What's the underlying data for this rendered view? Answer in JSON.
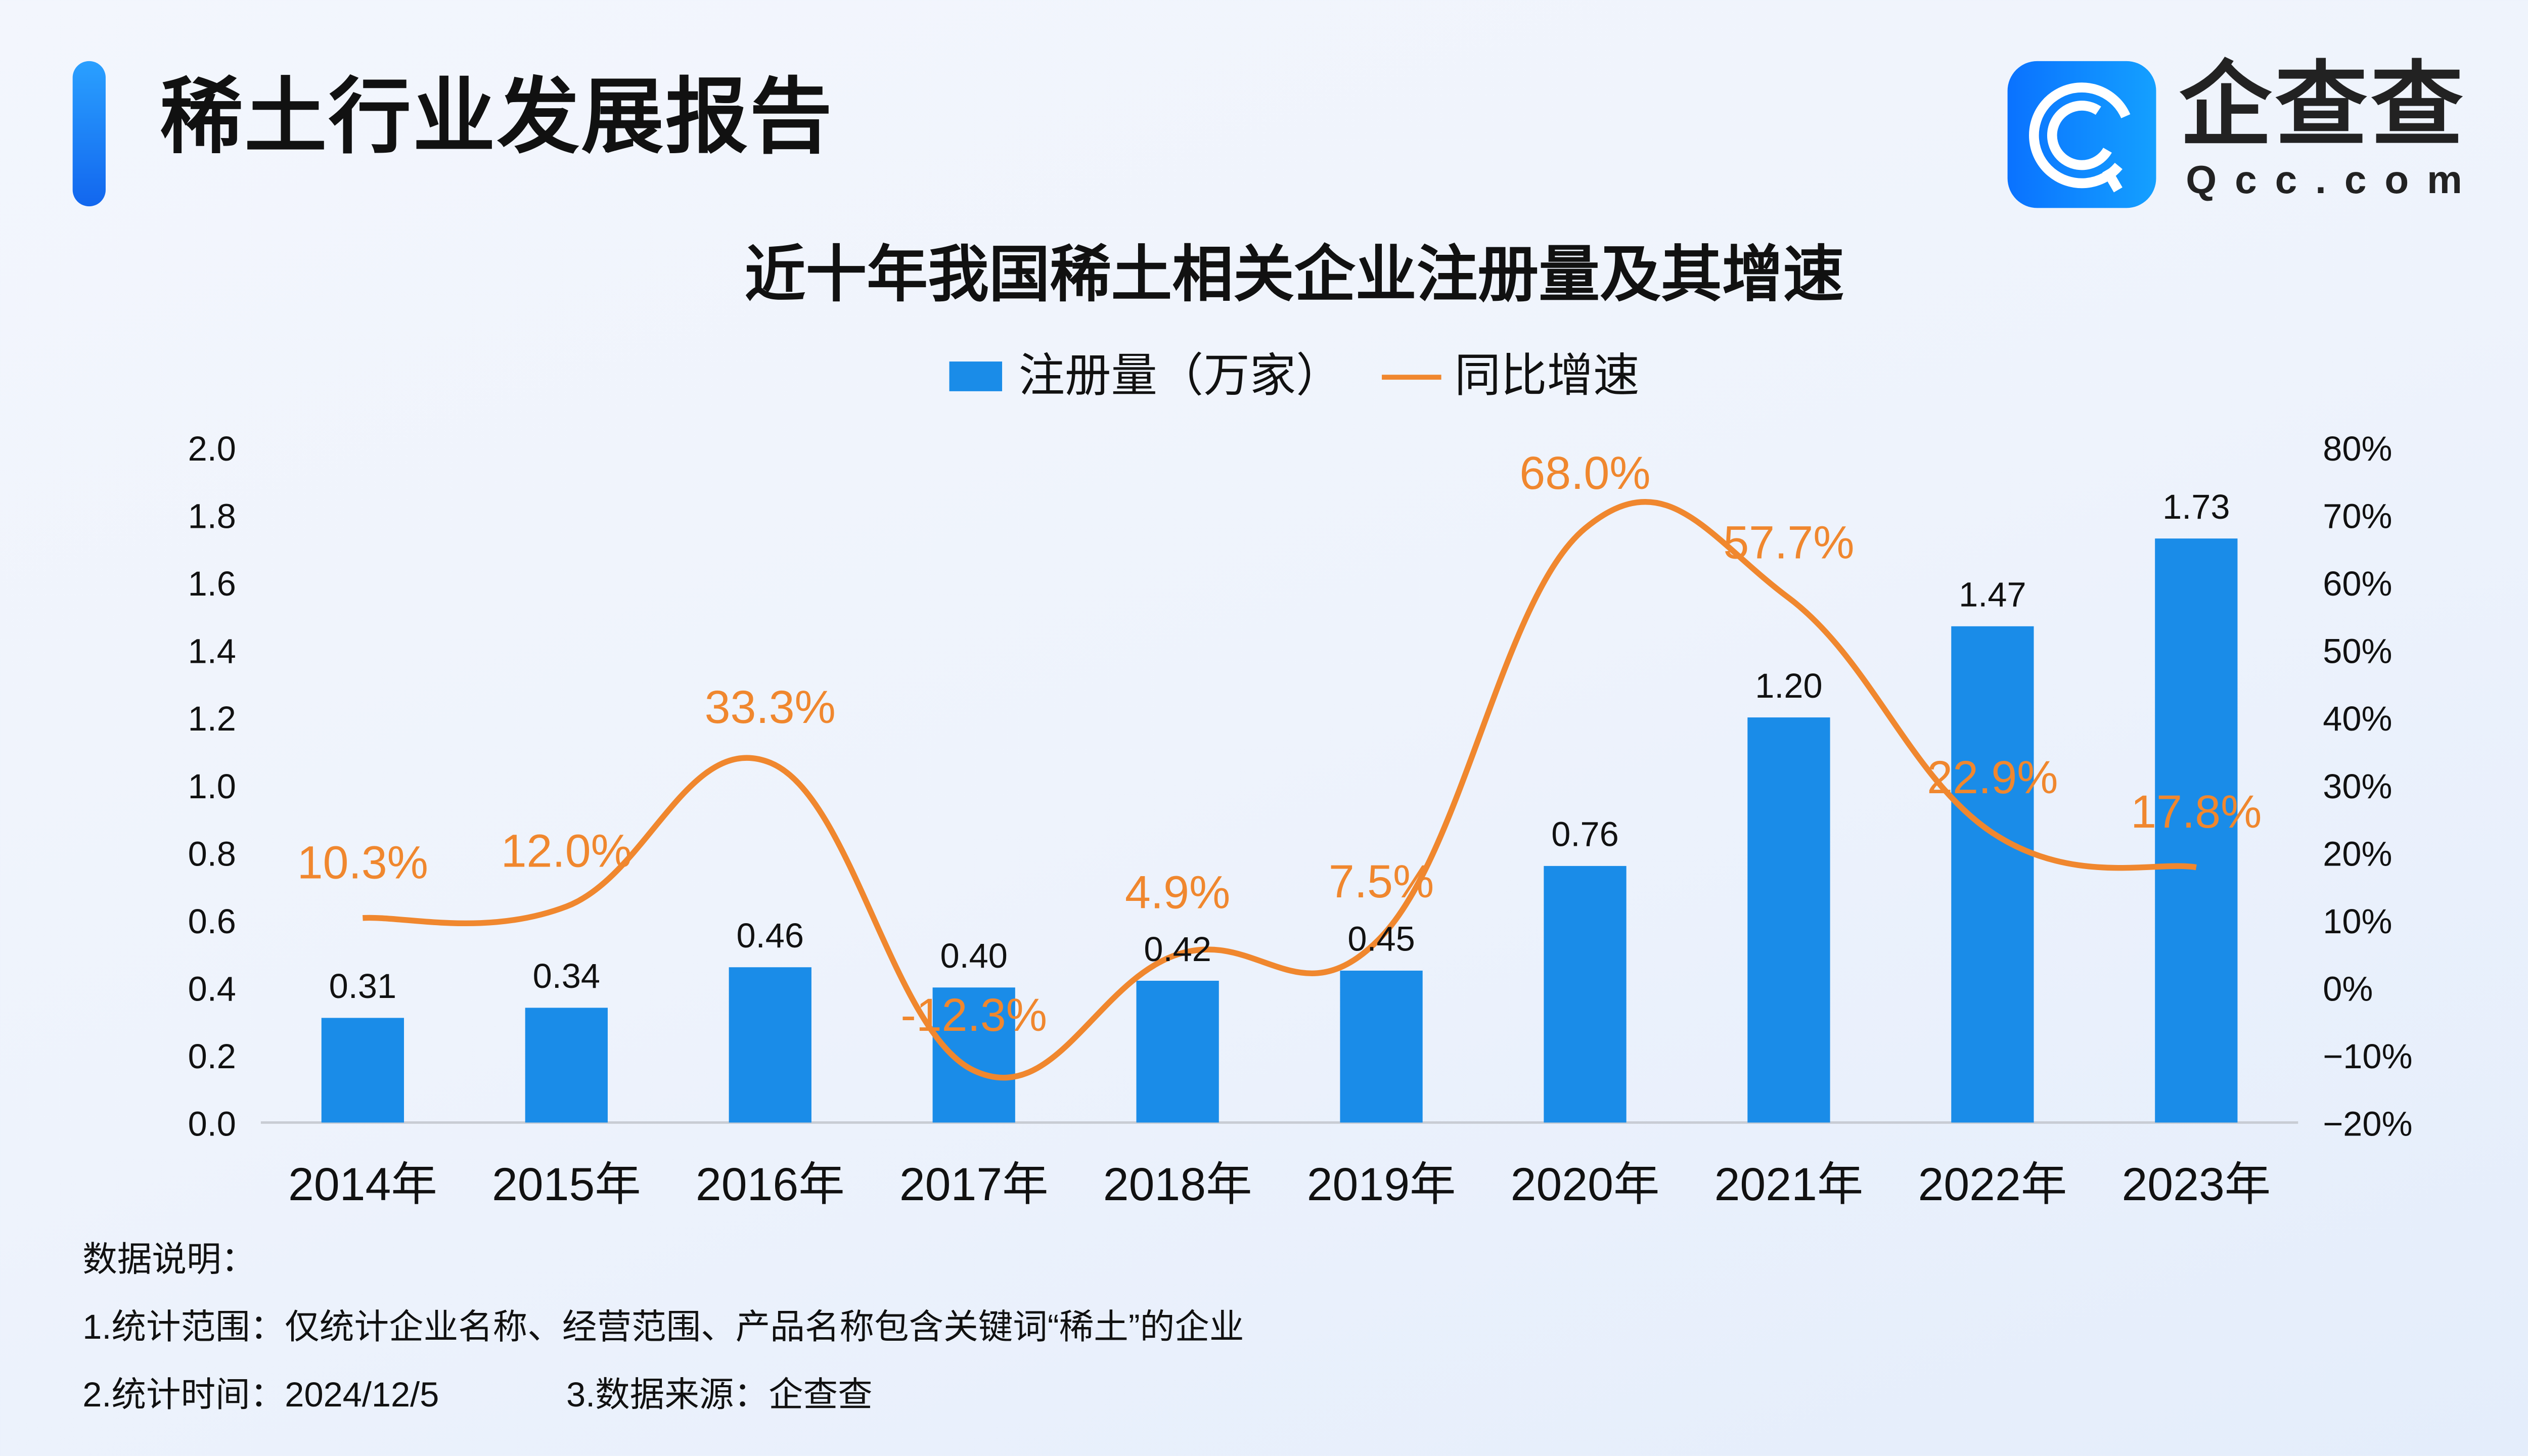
{
  "header": {
    "title": "稀土行业发展报告",
    "logo_cn": "企查查",
    "logo_en": "Qcc.com"
  },
  "chart_data": {
    "type": "bar+line",
    "title": "近十年我国稀土相关企业注册量及其增速",
    "categories": [
      "2014年",
      "2015年",
      "2016年",
      "2017年",
      "2018年",
      "2019年",
      "2020年",
      "2021年",
      "2022年",
      "2023年"
    ],
    "series": [
      {
        "name": "注册量（万家）",
        "type": "bar",
        "axis": "left",
        "color": "#1a8ce8",
        "values": [
          0.31,
          0.34,
          0.46,
          0.4,
          0.42,
          0.45,
          0.76,
          1.2,
          1.47,
          1.73
        ],
        "labels": [
          "0.31",
          "0.34",
          "0.46",
          "0.40",
          "0.42",
          "0.45",
          "0.76",
          "1.20",
          "1.47",
          "1.73"
        ]
      },
      {
        "name": "同比增速",
        "type": "line",
        "axis": "right",
        "color": "#f0872e",
        "values": [
          10.3,
          12.0,
          33.3,
          -12.3,
          4.9,
          7.5,
          68.0,
          57.7,
          22.9,
          17.8
        ],
        "labels": [
          "10.3%",
          "12.0%",
          "33.3%",
          "-12.3%",
          "4.9%",
          "7.5%",
          "68.0%",
          "57.7%",
          "22.9%",
          "17.8%"
        ]
      }
    ],
    "y_left": {
      "range": [
        0,
        2.0
      ],
      "ticks": [
        "0.0",
        "0.2",
        "0.4",
        "0.6",
        "0.8",
        "1.0",
        "1.2",
        "1.4",
        "1.6",
        "1.8",
        "2.0"
      ]
    },
    "y_right": {
      "range": [
        -20,
        80
      ],
      "ticks": [
        "−20%",
        "−10%",
        "0%",
        "10%",
        "20%",
        "30%",
        "40%",
        "50%",
        "60%",
        "70%",
        "80%"
      ]
    },
    "grid": false,
    "legend": "top-center"
  },
  "notes": {
    "heading": "数据说明：",
    "line1": "1.统计范围：仅统计企业名称、经营范围、产品名称包含关键词“稀土”的企业",
    "line2a": "2.统计时间：2024/12/5",
    "line2b": "3.数据来源：企查查"
  }
}
